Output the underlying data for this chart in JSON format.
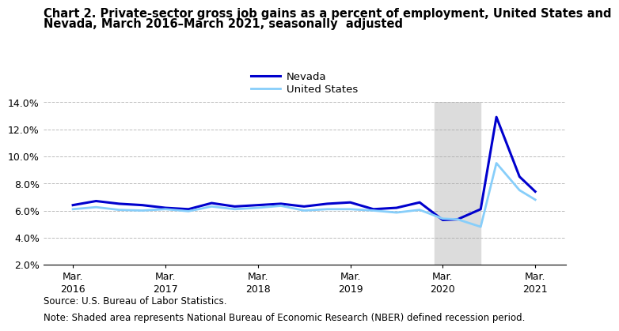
{
  "title_line1": "Chart 2. Private-sector gross job gains as a percent of employment, United States and",
  "title_line2": "Nevada, March 2016–March 2021, seasonally  adjusted",
  "source": "Source: U.S. Bureau of Labor Statistics.",
  "note": "Note: Shaded area represents National Bureau of Economic Research (NBER) defined recession period.",
  "legend_labels": [
    "Nevada",
    "United States"
  ],
  "nevada_color": "#0000CD",
  "us_color": "#87CEFA",
  "recession_color": "#DCDCDC",
  "recession_start": 2020.08,
  "recession_end": 2020.58,
  "ylim": [
    2.0,
    14.0
  ],
  "yticks": [
    2.0,
    4.0,
    6.0,
    8.0,
    10.0,
    12.0,
    14.0
  ],
  "xlim": [
    2015.85,
    2021.5
  ],
  "xtick_positions": [
    2016.17,
    2017.17,
    2018.17,
    2019.17,
    2020.17,
    2021.17
  ],
  "xtick_labels": [
    "Mar.\n2016",
    "Mar.\n2017",
    "Mar.\n2018",
    "Mar.\n2019",
    "Mar.\n2020",
    "Mar.\n2021"
  ],
  "nevada_x": [
    2016.17,
    2016.42,
    2016.67,
    2016.92,
    2017.17,
    2017.42,
    2017.67,
    2017.92,
    2018.17,
    2018.42,
    2018.67,
    2018.92,
    2019.17,
    2019.42,
    2019.67,
    2019.92,
    2020.17,
    2020.33,
    2020.58,
    2020.75,
    2021.0,
    2021.17
  ],
  "nevada_y": [
    6.4,
    6.7,
    6.5,
    6.4,
    6.2,
    6.1,
    6.55,
    6.3,
    6.4,
    6.5,
    6.3,
    6.5,
    6.6,
    6.1,
    6.2,
    6.6,
    5.3,
    5.35,
    6.1,
    12.9,
    8.5,
    7.4
  ],
  "us_x": [
    2016.17,
    2016.42,
    2016.67,
    2016.92,
    2017.17,
    2017.42,
    2017.67,
    2017.92,
    2018.17,
    2018.42,
    2018.67,
    2018.92,
    2019.17,
    2019.42,
    2019.67,
    2019.92,
    2020.17,
    2020.33,
    2020.58,
    2020.75,
    2021.0,
    2021.17
  ],
  "us_y": [
    6.1,
    6.25,
    6.05,
    6.0,
    6.1,
    5.95,
    6.3,
    6.1,
    6.2,
    6.35,
    6.0,
    6.1,
    6.1,
    6.0,
    5.85,
    6.05,
    5.4,
    5.35,
    4.8,
    9.5,
    7.5,
    6.8
  ],
  "background_color": "#FFFFFF",
  "grid_color": "#AAAAAA",
  "linewidth_nevada": 2.2,
  "linewidth_us": 2.0,
  "title_fontsize": 10.5,
  "legend_fontsize": 9.5,
  "tick_fontsize": 9,
  "note_fontsize": 8.5
}
